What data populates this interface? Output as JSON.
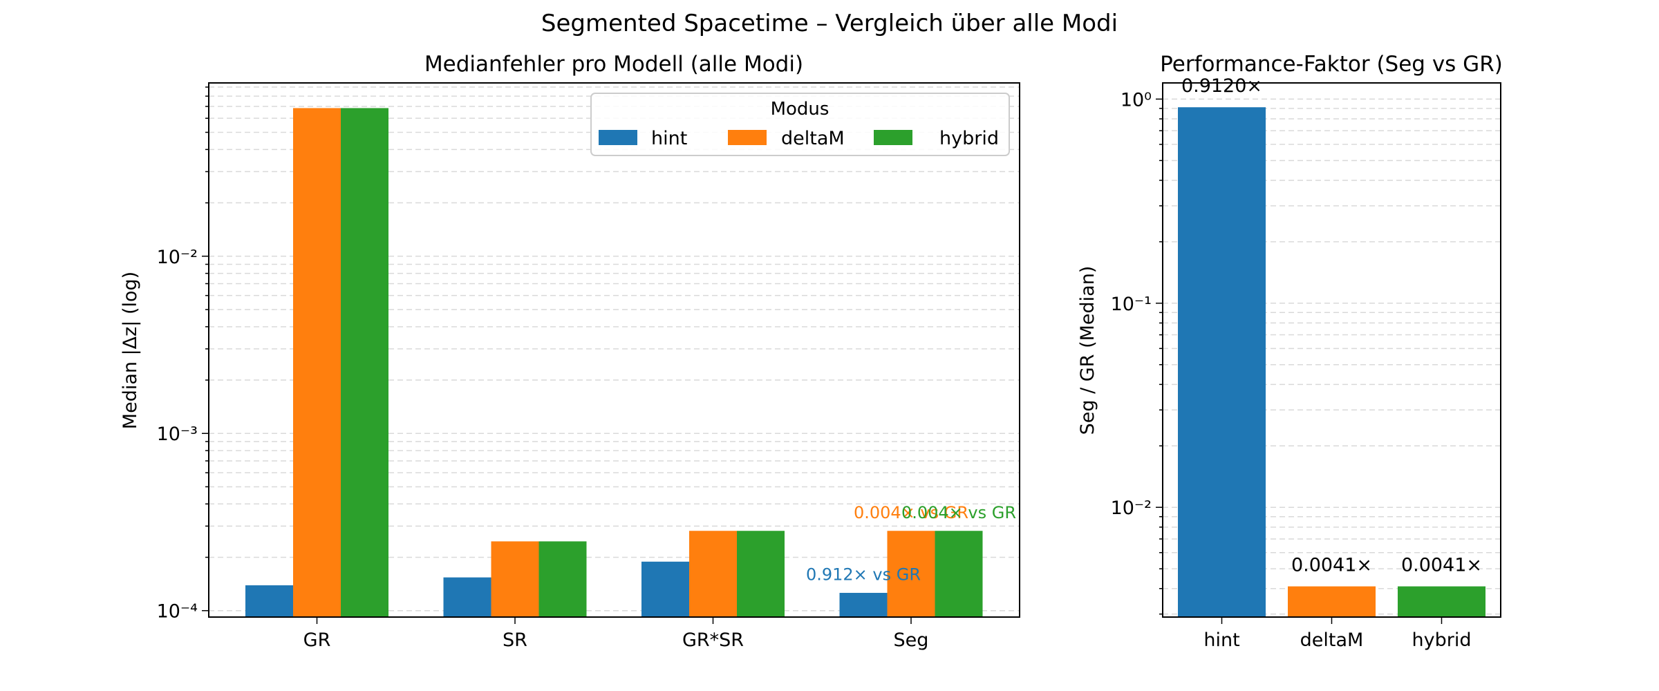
{
  "suptitle": "Segmented Spacetime – Vergleich über alle Modi",
  "colors": {
    "hint": "#1f77b4",
    "deltaM": "#ff7f0e",
    "hybrid": "#2ca02c",
    "axis": "#000000",
    "grid": "#d9d9d9",
    "text": "#000000"
  },
  "chart_data": [
    {
      "type": "bar",
      "title": "Medianfehler pro Modell (alle Modi)",
      "xlabel": "",
      "ylabel": "Median |Δz| (log)",
      "yscale": "log",
      "ylim": [
        9.2e-05,
        0.095
      ],
      "grid": "y-major-and-minor-dashed",
      "categories": [
        "GR",
        "SR",
        "GR*SR",
        "Seg"
      ],
      "legend": {
        "title": "Modus",
        "placement": "top-right",
        "entries": [
          "hint",
          "deltaM",
          "hybrid"
        ]
      },
      "series": [
        {
          "name": "hint",
          "color_key": "hint",
          "values": [
            0.000139,
            0.000154,
            0.000189,
            0.000126
          ]
        },
        {
          "name": "deltaM",
          "color_key": "deltaM",
          "values": [
            0.0685,
            0.000246,
            0.000282,
            0.000282
          ]
        },
        {
          "name": "hybrid",
          "color_key": "hybrid",
          "values": [
            0.0685,
            0.000246,
            0.000282,
            0.000282
          ]
        }
      ],
      "yticks": [
        {
          "value": 0.0001,
          "label": "10⁻⁴"
        },
        {
          "value": 0.001,
          "label": "10⁻³"
        },
        {
          "value": 0.01,
          "label": "10⁻²"
        }
      ],
      "annotations": [
        {
          "category": "Seg",
          "series": "hint",
          "text": "0.912× vs GR",
          "color_key": "hint"
        },
        {
          "category": "Seg",
          "series": "deltaM",
          "text": "0.004× vs GR",
          "color_key": "deltaM"
        },
        {
          "category": "Seg",
          "series": "hybrid",
          "text": "0.004× vs GR",
          "color_key": "hybrid"
        }
      ]
    },
    {
      "type": "bar",
      "title": "Performance-Faktor (Seg vs GR)",
      "xlabel": "",
      "ylabel": "Seg / GR (Median)",
      "yscale": "log",
      "ylim": [
        0.0029,
        1.2
      ],
      "grid": "y-major-and-minor-dashed",
      "categories": [
        "hint",
        "deltaM",
        "hybrid"
      ],
      "values": [
        0.912,
        0.0041,
        0.0041
      ],
      "color_keys": [
        "hint",
        "deltaM",
        "hybrid"
      ],
      "data_labels": [
        "0.9120×",
        "0.0041×",
        "0.0041×"
      ],
      "yticks": [
        {
          "value": 0.01,
          "label": "10⁻²"
        },
        {
          "value": 0.1,
          "label": "10⁻¹"
        },
        {
          "value": 1,
          "label": "10⁰"
        }
      ]
    }
  ]
}
